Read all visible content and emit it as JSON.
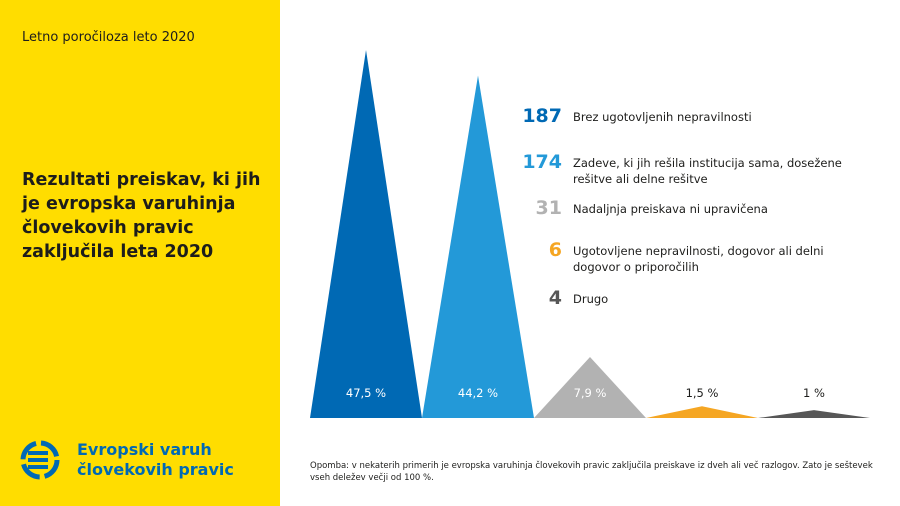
{
  "header": {
    "report": "Letno poročiloza leto 2020"
  },
  "title": "Rezultati preiskav, ki jih je evropska varuhinja človekovih pravic zaključila leta 2020",
  "logo": {
    "icon": "ombudsman-logo",
    "line1": "Evropski varuh",
    "line2": "človekovih pravic",
    "color": "#0069b4"
  },
  "chart_data": {
    "type": "bar",
    "shape": "triangle",
    "categories": [
      "Brez ugotovljenih nepravilnosti",
      "Zadeve, ki jih rešila institucija sama, dosežene rešitve ali delne rešitve",
      "Nadaljnja preiskava ni upravičena",
      "Ugotovljene nepravilnosti, dogovor ali delni dogovor o priporočilih",
      "Drugo"
    ],
    "values": [
      187,
      174,
      31,
      6,
      4
    ],
    "percent_labels": [
      "47,5 %",
      "44,2 %",
      "7,9 %",
      "1,5 %",
      "1 %"
    ],
    "value_labels": [
      "187",
      "174",
      "31",
      "6",
      "4"
    ],
    "colors": [
      "#0069b4",
      "#2399d8",
      "#b2b2b2",
      "#f5a623",
      "#575757"
    ],
    "label_colors": [
      "#ffffff",
      "#ffffff",
      "#ffffff",
      "#1d1d1b",
      "#1d1d1b"
    ],
    "ylim": [
      0,
      187
    ],
    "grid": false,
    "legend": "right"
  },
  "note": "Opomba: v nekaterih primerih je evropska varuhinja človekovih pravic zaključila preiskave iz dveh ali več razlogov. Zato je seštevek vseh deležev večji od 100 %.",
  "background": "#ffdd00"
}
